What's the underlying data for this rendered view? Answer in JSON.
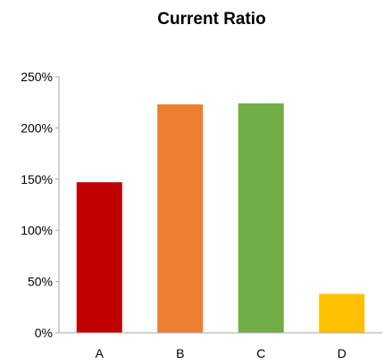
{
  "chart_data": {
    "type": "bar",
    "title": "Current Ratio",
    "categories": [
      "A",
      "B",
      "C",
      "D"
    ],
    "values": [
      147,
      223,
      224,
      38
    ],
    "bar_colors": [
      "#c00000",
      "#ed7d31",
      "#70ad47",
      "#ffc000"
    ],
    "yticks": [
      0,
      50,
      100,
      150,
      200,
      250
    ],
    "ytick_labels": [
      "0%",
      "50%",
      "100%",
      "150%",
      "200%",
      "250%"
    ],
    "ylim": [
      0,
      250
    ],
    "grid": false,
    "legend": "none",
    "axis_color": "#a6a6a6"
  }
}
